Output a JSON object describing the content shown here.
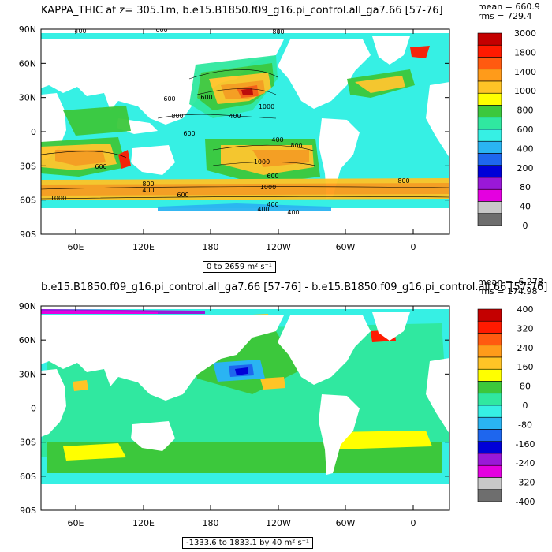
{
  "chart_data": [
    {
      "type": "heatmap",
      "title": "KAPPA_THIC at z= 305.1m, b.e15.B1850.f09_g16.pi_control.all_ga7.66 [57-76]",
      "stats": {
        "mean": "mean = 660.9",
        "rms": "rms = 729.4"
      },
      "range_text": "0 to 2659 m² s⁻¹",
      "x_ticks": [
        "60E",
        "120E",
        "180",
        "120W",
        "60W",
        "0"
      ],
      "y_ticks": [
        "90N",
        "60N",
        "30N",
        "0",
        "30S",
        "60S",
        "90S"
      ],
      "colorbar": {
        "labels": [
          "3000",
          "1800",
          "1400",
          "1000",
          "800",
          "600",
          "400",
          "200",
          "80",
          "40",
          "0"
        ],
        "colors": [
          "#c40000",
          "#ff1a00",
          "#ff5a10",
          "#ff9b1a",
          "#ffc426",
          "#ffff00",
          "#3cc83c",
          "#30e8a0",
          "#36f0e4",
          "#2ab4f2",
          "#1e66ee",
          "#0000d8",
          "#9a18d8",
          "#e400e0",
          "#c8c8c8",
          "#6e6e6e"
        ]
      },
      "contour_labels": [
        "400",
        "600",
        "800",
        "600",
        "600",
        "1000",
        "800",
        "400",
        "600",
        "400",
        "800",
        "1000",
        "600",
        "1000",
        "400",
        "600",
        "800",
        "600",
        "1000",
        "400",
        "800",
        "400",
        "400"
      ]
    },
    {
      "type": "heatmap",
      "title": "b.e15.B1850.f09_g16.pi_control.all_ga7.66 [57-76] - b.e15.B1850.f09_g16.pi_control.all.66 [57-76]",
      "stats": {
        "mean": "mean = -6.278",
        "rms": "rms = 174.98"
      },
      "range_text": "-1333.6 to 1833.1 by 40 m² s⁻¹",
      "x_ticks": [
        "60E",
        "120E",
        "180",
        "120W",
        "60W",
        "0"
      ],
      "y_ticks": [
        "90N",
        "60N",
        "30N",
        "0",
        "30S",
        "60S",
        "90S"
      ],
      "colorbar": {
        "labels": [
          "400",
          "320",
          "240",
          "160",
          "80",
          "0",
          "-80",
          "-160",
          "-240",
          "-320",
          "-400"
        ],
        "colors": [
          "#c40000",
          "#ff1a00",
          "#ff5a10",
          "#ff9b1a",
          "#ffc426",
          "#ffff00",
          "#3cc83c",
          "#30e8a0",
          "#36f0e4",
          "#2ab4f2",
          "#1e66ee",
          "#0000d8",
          "#9a18d8",
          "#e400e0",
          "#c8c8c8",
          "#6e6e6e"
        ]
      }
    }
  ]
}
